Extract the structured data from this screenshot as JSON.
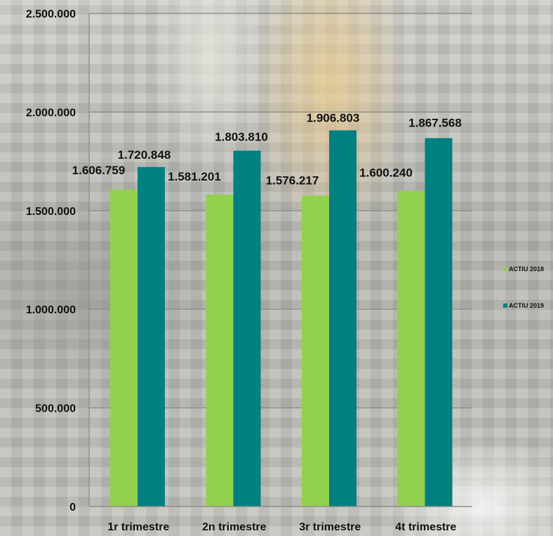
{
  "chart_data": {
    "type": "bar",
    "title": "",
    "xlabel": "",
    "ylabel": "",
    "categories": [
      "1r trimestre",
      "2n trimestre",
      "3r trimestre",
      "4t trimestre"
    ],
    "series": [
      {
        "name": "ACTIU 2018",
        "color": "#92d050",
        "values": [
          1606759,
          1581201,
          1576217,
          1600240
        ]
      },
      {
        "name": "ACTIU 2019",
        "color": "#008080",
        "values": [
          1720848,
          1803810,
          1906803,
          1867568
        ]
      }
    ],
    "data_labels": [
      [
        "1.606.759",
        "1.581.201",
        "1.576.217",
        "1.600.240"
      ],
      [
        "1.720.848",
        "1.803.810",
        "1.906.803",
        "1.867.568"
      ]
    ],
    "ylim": [
      0,
      2500000
    ],
    "yticks": [
      0,
      500000,
      1000000,
      1500000,
      2000000,
      2500000
    ],
    "ytick_labels": [
      "0",
      "500.000",
      "1.000.000",
      "1.500.000",
      "2.000.000",
      "2.500.000"
    ],
    "grid": true,
    "legend_position": "right"
  }
}
